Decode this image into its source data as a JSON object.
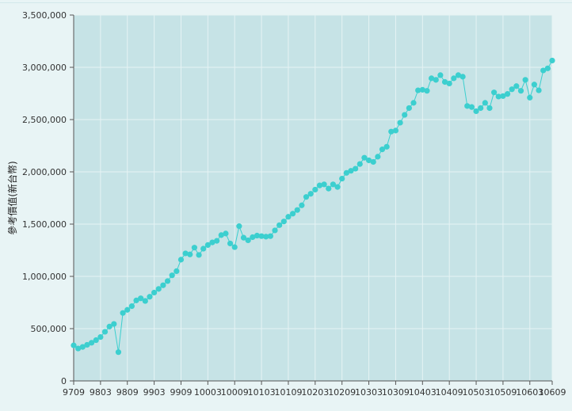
{
  "chart_data": {
    "type": "line",
    "title": "",
    "xlabel": "",
    "ylabel": "參考價值(新台幣)",
    "ylim": [
      0,
      3500000
    ],
    "y_ticks": [
      0,
      500000,
      1000000,
      1500000,
      2000000,
      2500000,
      3000000,
      3500000
    ],
    "y_tick_labels": [
      "0",
      "500,000",
      "1,000,000",
      "1,500,000",
      "2,000,000",
      "2,500,000",
      "3,000,000",
      "3,500,000"
    ],
    "x_tick_labels": [
      "9709",
      "9803",
      "9809",
      "9903",
      "9909",
      "10003",
      "10009",
      "10103",
      "10109",
      "10203",
      "10209",
      "10303",
      "10309",
      "10403",
      "10409",
      "10503",
      "10509",
      "10603",
      "10609"
    ],
    "grid": true,
    "legend": "none",
    "colors": {
      "series": "#3ccfcf",
      "plot_bg": "#c6e3e6",
      "grid": "#e6f3f4",
      "page_bg": "#e8f4f5"
    },
    "series": [
      {
        "values": [
          340000,
          310000,
          325000,
          345000,
          365000,
          390000,
          420000,
          470000,
          520000,
          545000,
          275000,
          650000,
          680000,
          715000,
          770000,
          790000,
          765000,
          805000,
          845000,
          880000,
          915000,
          955000,
          1010000,
          1050000,
          1160000,
          1220000,
          1210000,
          1275000,
          1205000,
          1265000,
          1300000,
          1325000,
          1340000,
          1395000,
          1410000,
          1315000,
          1280000,
          1480000,
          1370000,
          1345000,
          1375000,
          1390000,
          1385000,
          1380000,
          1385000,
          1440000,
          1490000,
          1525000,
          1570000,
          1600000,
          1635000,
          1680000,
          1760000,
          1790000,
          1830000,
          1870000,
          1880000,
          1840000,
          1880000,
          1855000,
          1935000,
          1990000,
          2010000,
          2030000,
          2075000,
          2135000,
          2110000,
          2095000,
          2145000,
          2215000,
          2240000,
          2385000,
          2395000,
          2470000,
          2545000,
          2610000,
          2660000,
          2780000,
          2785000,
          2775000,
          2895000,
          2880000,
          2925000,
          2860000,
          2845000,
          2895000,
          2925000,
          2910000,
          2630000,
          2620000,
          2580000,
          2610000,
          2660000,
          2610000,
          2760000,
          2720000,
          2725000,
          2745000,
          2790000,
          2820000,
          2775000,
          2880000,
          2710000,
          2835000,
          2780000,
          2970000,
          2990000,
          3065000
        ]
      }
    ]
  }
}
